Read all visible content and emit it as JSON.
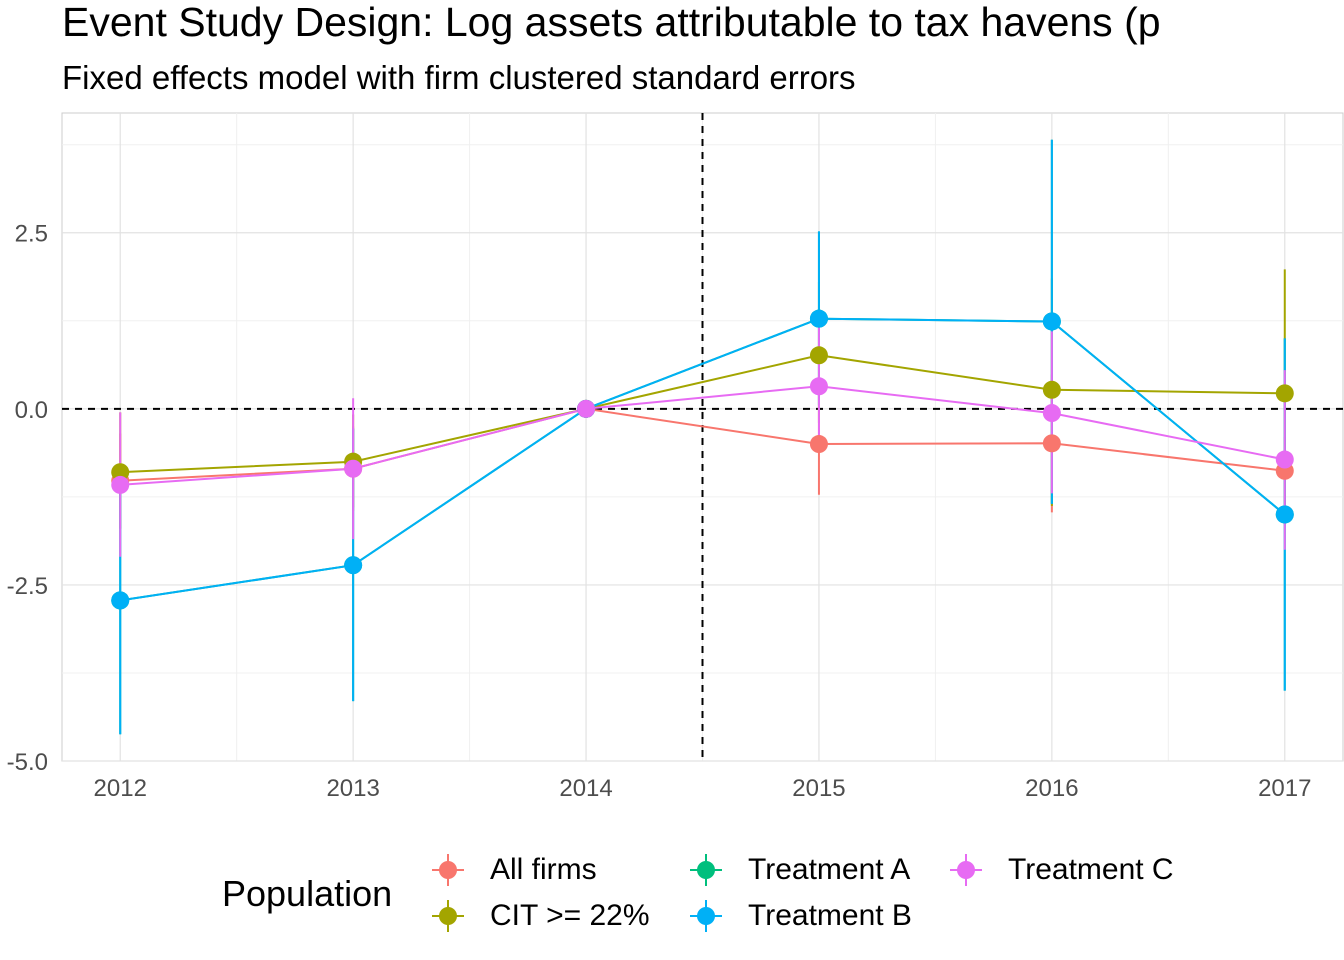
{
  "chart_data": {
    "type": "line",
    "title": "Event Study Design: Log assets attributable to tax havens (p",
    "subtitle": "Fixed effects model with firm clustered standard errors",
    "xlabel": "",
    "ylabel": "",
    "x": [
      2012,
      2013,
      2014,
      2015,
      2016,
      2017
    ],
    "x_tick_labels": [
      "2012",
      "2013",
      "2014",
      "2015",
      "2016",
      "2017"
    ],
    "xlim": [
      2011.75,
      2017.25
    ],
    "ylim": [
      -5.0,
      4.2
    ],
    "y_ticks": [
      2.5,
      0.0,
      -2.5,
      -5.0
    ],
    "y_tick_labels": [
      "2.5",
      "0.0",
      "-2.5",
      "-5.0"
    ],
    "reference_lines": {
      "horizontal": 0,
      "vertical": 2014.5
    },
    "grid": true,
    "legend": {
      "title": "Population",
      "placement": "bottom"
    },
    "series": [
      {
        "name": "All firms",
        "color": "#F8766D",
        "values": [
          -1.02,
          -0.85,
          0.0,
          -0.5,
          -0.49,
          -0.88
        ],
        "lower": [
          -1.7,
          -1.45,
          0.0,
          -1.22,
          -1.47,
          -1.35
        ],
        "upper": [
          -0.35,
          -0.25,
          0.0,
          0.22,
          0.49,
          -0.4
        ]
      },
      {
        "name": "CIT >= 22%",
        "color": "#A3A500",
        "values": [
          -0.9,
          -0.75,
          0.0,
          0.76,
          0.27,
          0.22
        ],
        "lower": [
          -1.7,
          -1.4,
          0.0,
          -0.2,
          -1.38,
          -1.55
        ],
        "upper": [
          -0.05,
          -0.08,
          0.0,
          1.8,
          1.85,
          1.98
        ]
      },
      {
        "name": "Treatment A",
        "color": "#00BF7D",
        "values": [
          -2.72,
          -2.22,
          0.0,
          1.28,
          1.24,
          -1.5
        ],
        "lower": [
          -4.62,
          -4.15,
          0.0,
          0.05,
          -1.35,
          -4.0
        ],
        "upper": [
          -0.82,
          -0.28,
          0.0,
          2.52,
          3.82,
          1.0
        ]
      },
      {
        "name": "Treatment B",
        "color": "#00B0F6",
        "values": [
          -2.72,
          -2.22,
          0.0,
          1.28,
          1.24,
          -1.5
        ],
        "lower": [
          -4.62,
          -4.15,
          0.0,
          0.05,
          -1.35,
          -4.0
        ],
        "upper": [
          -0.82,
          -0.28,
          0.0,
          2.52,
          3.82,
          1.0
        ]
      },
      {
        "name": "Treatment C",
        "color": "#E76BF3",
        "values": [
          -1.08,
          -0.85,
          0.0,
          0.32,
          -0.06,
          -0.72
        ],
        "lower": [
          -2.1,
          -1.85,
          0.0,
          -0.6,
          -1.2,
          -2.0
        ],
        "upper": [
          -0.05,
          0.15,
          0.0,
          1.25,
          1.1,
          0.55
        ]
      }
    ]
  }
}
